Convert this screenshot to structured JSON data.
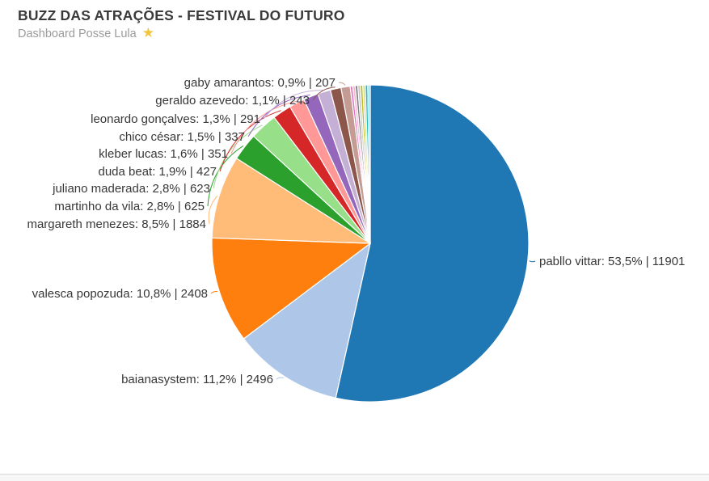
{
  "header": {
    "title": "BUZZ DAS ATRAÇÕES - FESTIVAL DO FUTURO",
    "subtitle": "Dashboard Posse Lula",
    "star_icon": "★",
    "star_color": "#f2c53d"
  },
  "chart_data": {
    "type": "pie",
    "title": "BUZZ DAS ATRAÇÕES - FESTIVAL DO FUTURO",
    "subtitle": "Dashboard Posse Lula",
    "start_angle": "12-oclock",
    "direction": "clockwise",
    "legend_position": "none",
    "label_format": "name: percent | value",
    "total_estimated": 22245,
    "label_text_color": "#383838",
    "slice_border_color": "#ffffff",
    "segments": [
      {
        "name": "pabllo vittar",
        "value": 11901,
        "pct": "53,5%",
        "color": "#1f77b4",
        "label": "pabllo vittar: 53,5% | 11901"
      },
      {
        "name": "baianasystem",
        "value": 2496,
        "pct": "11,2%",
        "color": "#aec7e8",
        "label": "baianasystem: 11,2% | 2496"
      },
      {
        "name": "valesca popozuda",
        "value": 2408,
        "pct": "10,8%",
        "color": "#ff7f0e",
        "label": "valesca popozuda: 10,8% | 2408"
      },
      {
        "name": "margareth menezes",
        "value": 1884,
        "pct": "8,5%",
        "color": "#ffbb78",
        "label": "margareth menezes: 8,5% | 1884"
      },
      {
        "name": "martinho da vila",
        "value": 625,
        "pct": "2,8%",
        "color": "#2ca02c",
        "label": "martinho da vila: 2,8% | 625"
      },
      {
        "name": "juliano maderada",
        "value": 623,
        "pct": "2,8%",
        "color": "#98df8a",
        "label": "juliano maderada: 2,8% | 623"
      },
      {
        "name": "duda beat",
        "value": 427,
        "pct": "1,9%",
        "color": "#d62728",
        "label": "duda beat: 1,9% | 427"
      },
      {
        "name": "kleber lucas",
        "value": 351,
        "pct": "1,6%",
        "color": "#ff9896",
        "label": "kleber lucas: 1,6% | 351"
      },
      {
        "name": "chico césar",
        "value": 337,
        "pct": "1,5%",
        "color": "#9467bd",
        "label": "chico césar: 1,5% | 337"
      },
      {
        "name": "leonardo gonçalves",
        "value": 291,
        "pct": "1,3%",
        "color": "#c5b0d5",
        "label": "leonardo gonçalves: 1,3% | 291"
      },
      {
        "name": "geraldo azevedo",
        "value": 243,
        "pct": "1,1%",
        "color": "#8c564b",
        "label": "geraldo azevedo: 1,1% | 243"
      },
      {
        "name": "gaby amarantos",
        "value": 207,
        "pct": "0,9%",
        "color": "#c49c94",
        "label": "gaby amarantos: 0,9% | 207"
      },
      {
        "name": "",
        "value": 57,
        "color": "#e377c2",
        "label": null,
        "estimated": true
      },
      {
        "name": "",
        "value": 57,
        "color": "#f7b6d2",
        "label": null,
        "estimated": true
      },
      {
        "name": "",
        "value": 57,
        "color": "#7f7f7f",
        "label": null,
        "estimated": true
      },
      {
        "name": "",
        "value": 57,
        "color": "#c7c7c7",
        "label": null,
        "estimated": true
      },
      {
        "name": "",
        "value": 56,
        "color": "#bcbd22",
        "label": null,
        "estimated": true
      },
      {
        "name": "",
        "value": 56,
        "color": "#dbdb8d",
        "label": null,
        "estimated": true
      },
      {
        "name": "",
        "value": 56,
        "color": "#17becf",
        "label": null,
        "estimated": true
      },
      {
        "name": "",
        "value": 56,
        "color": "#9edae5",
        "label": null,
        "estimated": true
      }
    ]
  }
}
